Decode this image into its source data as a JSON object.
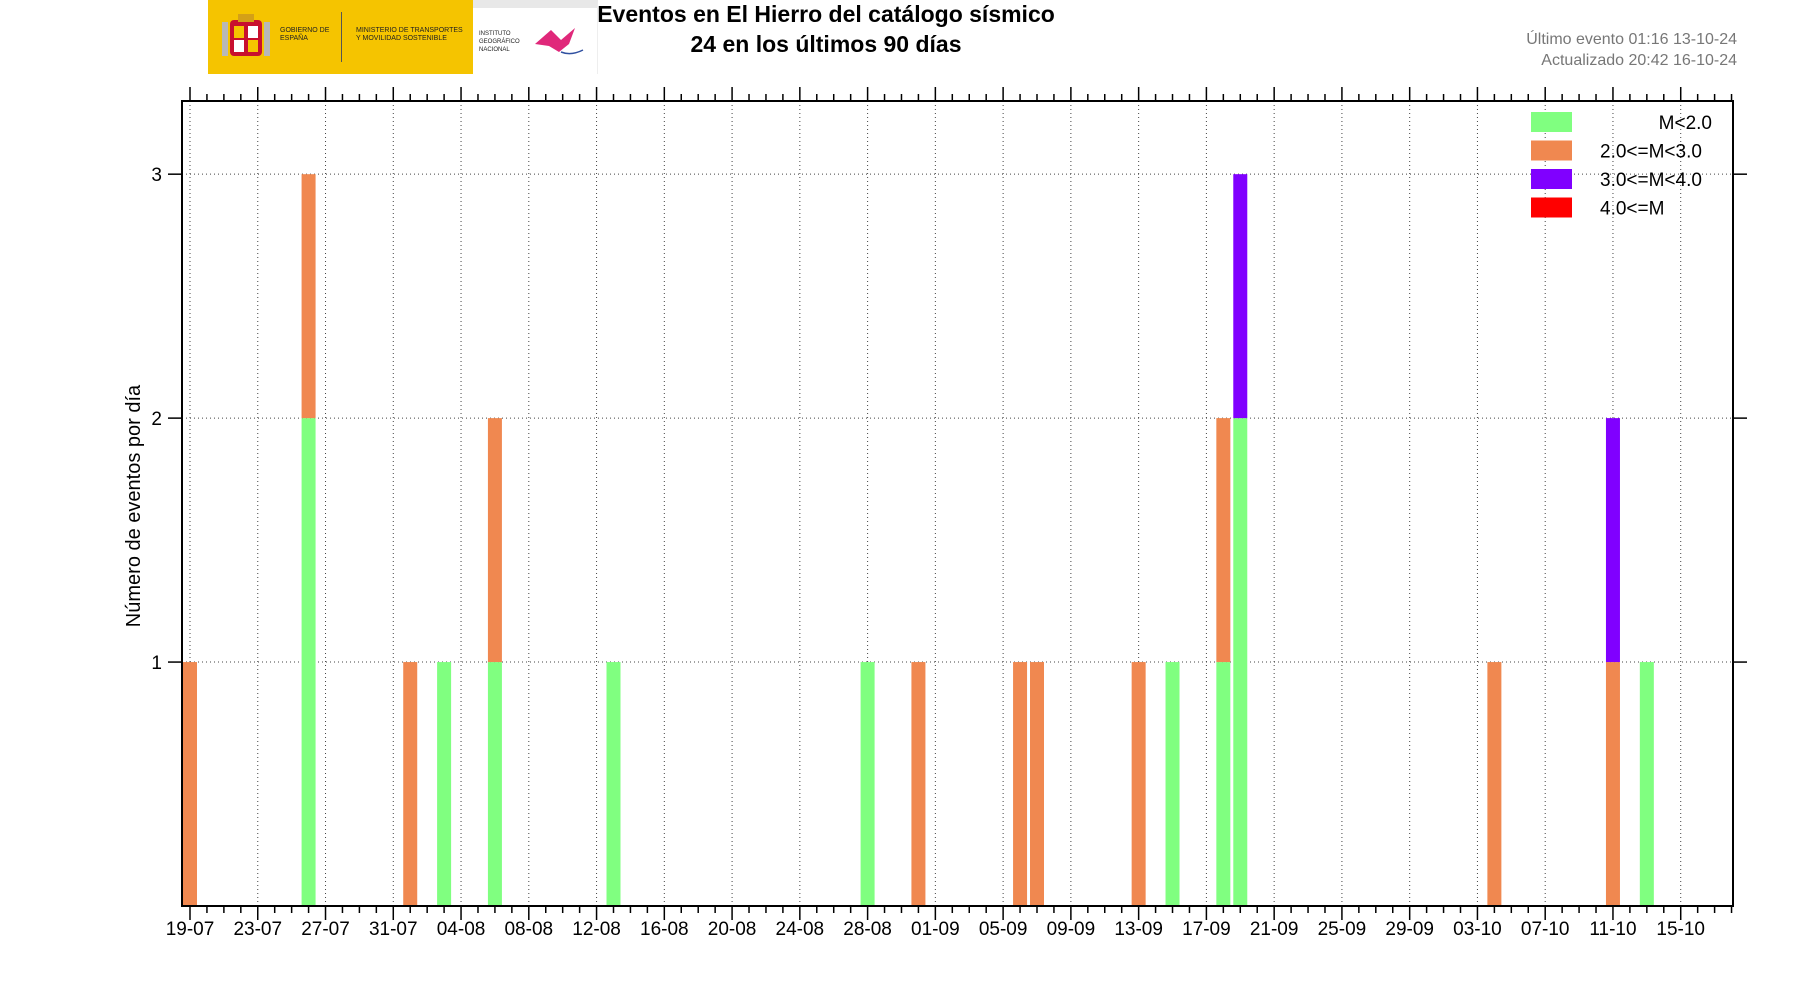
{
  "header": {
    "title_line1": "Eventos en El Hierro del catálogo sísmico",
    "title_line2": "24 en los últimos 90 días",
    "last_event": "Último evento 01:16 13-10-24",
    "updated": "Actualizado   20:42  16-10-24",
    "logo_text_1": "GOBIERNO DE ESPAÑA",
    "logo_text_2": "MINISTERIO DE TRANSPORTES Y MOVILIDAD SOSTENIBLE",
    "logo_text_3": "INSTITUTO GEOGRÁFICO NACIONAL"
  },
  "colors": {
    "M<2.0": "#80ff80",
    "2.0<=M<3.0": "#f08850",
    "3.0<=M<4.0": "#8000ff",
    "4.0<=M": "#ff0000"
  },
  "chart_data": {
    "type": "bar",
    "stacked": true,
    "ylabel": "Número de eventos por día",
    "xlabel": "",
    "x_ticks": [
      "19-07",
      "23-07",
      "27-07",
      "31-07",
      "04-08",
      "08-08",
      "12-08",
      "16-08",
      "20-08",
      "24-08",
      "28-08",
      "01-09",
      "05-09",
      "09-09",
      "13-09",
      "17-09",
      "21-09",
      "25-09",
      "29-09",
      "03-10",
      "07-10",
      "11-10",
      "15-10"
    ],
    "y_ticks": [
      "1",
      "2",
      "3"
    ],
    "ylim": [
      0,
      3.3
    ],
    "grid": true,
    "legend_position": "top-right",
    "legend": [
      "M<2.0",
      "2.0<=M<3.0",
      "3.0<=M<4.0",
      "4.0<=M"
    ],
    "days": [
      {
        "date": "19-07",
        "M<2.0": 0,
        "2.0<=M<3.0": 1,
        "3.0<=M<4.0": 0
      },
      {
        "date": "26-07",
        "M<2.0": 2,
        "2.0<=M<3.0": 1,
        "3.0<=M<4.0": 0
      },
      {
        "date": "01-08",
        "M<2.0": 0,
        "2.0<=M<3.0": 1,
        "3.0<=M<4.0": 0
      },
      {
        "date": "03-08",
        "M<2.0": 1,
        "2.0<=M<3.0": 0,
        "3.0<=M<4.0": 0
      },
      {
        "date": "06-08",
        "M<2.0": 1,
        "2.0<=M<3.0": 1,
        "3.0<=M<4.0": 0
      },
      {
        "date": "13-08",
        "M<2.0": 1,
        "2.0<=M<3.0": 0,
        "3.0<=M<4.0": 0
      },
      {
        "date": "28-08",
        "M<2.0": 1,
        "2.0<=M<3.0": 0,
        "3.0<=M<4.0": 0
      },
      {
        "date": "31-08",
        "M<2.0": 0,
        "2.0<=M<3.0": 1,
        "3.0<=M<4.0": 0
      },
      {
        "date": "06-09",
        "M<2.0": 0,
        "2.0<=M<3.0": 1,
        "3.0<=M<4.0": 0
      },
      {
        "date": "07-09",
        "M<2.0": 0,
        "2.0<=M<3.0": 1,
        "3.0<=M<4.0": 0
      },
      {
        "date": "13-09",
        "M<2.0": 0,
        "2.0<=M<3.0": 1,
        "3.0<=M<4.0": 0
      },
      {
        "date": "15-09",
        "M<2.0": 1,
        "2.0<=M<3.0": 0,
        "3.0<=M<4.0": 0
      },
      {
        "date": "18-09",
        "M<2.0": 1,
        "2.0<=M<3.0": 1,
        "3.0<=M<4.0": 0
      },
      {
        "date": "19-09",
        "M<2.0": 2,
        "2.0<=M<3.0": 0,
        "3.0<=M<4.0": 1
      },
      {
        "date": "04-10",
        "M<2.0": 0,
        "2.0<=M<3.0": 1,
        "3.0<=M<4.0": 0
      },
      {
        "date": "11-10",
        "M<2.0": 0,
        "2.0<=M<3.0": 1,
        "3.0<=M<4.0": 1
      },
      {
        "date": "13-10",
        "M<2.0": 1,
        "2.0<=M<3.0": 0,
        "3.0<=M<4.0": 0
      }
    ]
  }
}
